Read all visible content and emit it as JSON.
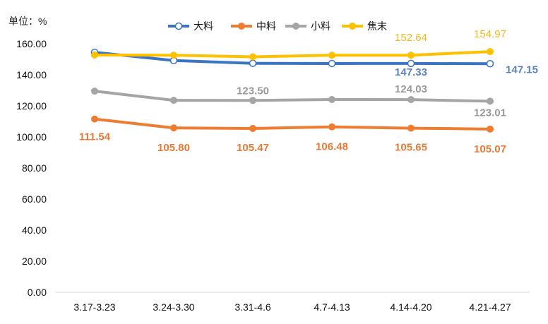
{
  "chart_data": {
    "type": "line",
    "unit_label": "单位：%",
    "categories": [
      "3.17-3.23",
      "3.24-3.30",
      "3.31-4.6",
      "4.7-4.13",
      "4.14-4.20",
      "4.21-4.27"
    ],
    "ylim": [
      0,
      160
    ],
    "yticks": [
      "0.00",
      "20.00",
      "40.00",
      "60.00",
      "80.00",
      "100.00",
      "120.00",
      "140.00",
      "160.00"
    ],
    "legend_position": "top-center",
    "grid": false,
    "series": [
      {
        "name": "大料",
        "color": "#3a75c4",
        "marker": "hollow-circle",
        "values": [
          154.5,
          149.2,
          147.4,
          147.3,
          147.33,
          147.15
        ],
        "labels": [
          {
            "index": 4,
            "text": "147.33",
            "color": "#5a80c0",
            "weight": "bold"
          },
          {
            "index": 5,
            "text": "147.15",
            "color": "#5a80c0",
            "weight": "bold"
          }
        ]
      },
      {
        "name": "中料",
        "color": "#ed7d31",
        "marker": "filled-circle",
        "values": [
          111.54,
          105.8,
          105.47,
          106.48,
          105.65,
          105.07
        ],
        "labels": [
          {
            "index": 0,
            "text": "111.54",
            "color": "#e77a36",
            "weight": "bold"
          },
          {
            "index": 1,
            "text": "105.80",
            "color": "#e77a36",
            "weight": "bold"
          },
          {
            "index": 2,
            "text": "105.47",
            "color": "#e77a36",
            "weight": "bold"
          },
          {
            "index": 3,
            "text": "106.48",
            "color": "#e77a36",
            "weight": "bold"
          },
          {
            "index": 4,
            "text": "105.65",
            "color": "#e77a36",
            "weight": "bold"
          },
          {
            "index": 5,
            "text": "105.07",
            "color": "#e77a36",
            "weight": "bold"
          }
        ]
      },
      {
        "name": "小料",
        "color": "#a5a5a5",
        "marker": "filled-circle",
        "values": [
          129.5,
          123.6,
          123.5,
          124.1,
          124.03,
          123.01
        ],
        "labels": [
          {
            "index": 2,
            "text": "123.50",
            "color": "#9a9a9a",
            "weight": "bold"
          },
          {
            "index": 4,
            "text": "124.03",
            "color": "#9a9a9a",
            "weight": "bold"
          },
          {
            "index": 5,
            "text": "123.01",
            "color": "#9a9a9a",
            "weight": "bold"
          }
        ]
      },
      {
        "name": "焦末",
        "color": "#ffc000",
        "marker": "filled-circle",
        "values": [
          152.8,
          152.6,
          151.6,
          152.6,
          152.64,
          154.97
        ],
        "labels": [
          {
            "index": 4,
            "text": "152.64",
            "color": "#f2b81a",
            "weight": "normal"
          },
          {
            "index": 5,
            "text": "154.97",
            "color": "#f2b81a",
            "weight": "normal"
          }
        ]
      }
    ]
  }
}
